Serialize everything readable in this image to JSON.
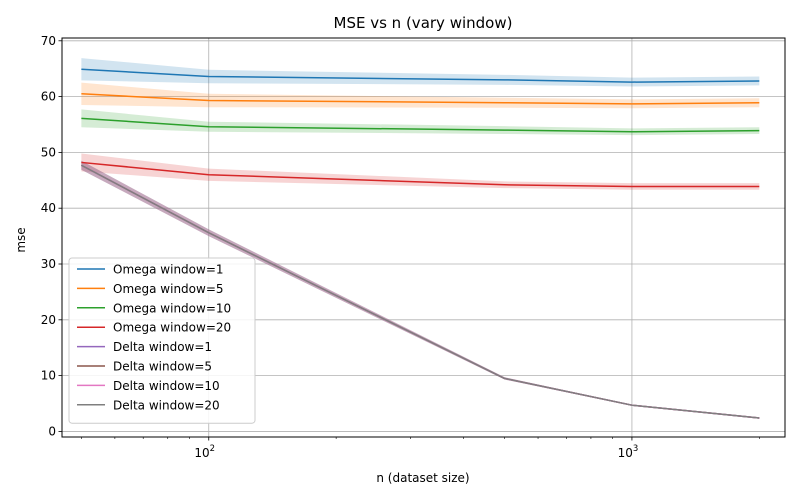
{
  "chart_data": {
    "type": "line",
    "title": "MSE vs n (vary window)",
    "xlabel": "n (dataset size)",
    "ylabel": "mse",
    "xscale": "log",
    "xlim": [
      45,
      2300
    ],
    "ylim": [
      -1,
      70.5
    ],
    "grid": true,
    "legend_position": "lower-left",
    "x": [
      50,
      100,
      500,
      1000,
      2000
    ],
    "x_ticks": [
      {
        "value": 100,
        "base": "10",
        "exp": "2"
      },
      {
        "value": 1000,
        "base": "10",
        "exp": "3"
      }
    ],
    "y_ticks": [
      0,
      10,
      20,
      30,
      40,
      50,
      60,
      70
    ],
    "series": [
      {
        "name": "Omega window=1",
        "color": "#1f77b4",
        "values": [
          64.9,
          63.6,
          63.0,
          62.6,
          62.8
        ],
        "band": [
          2.0,
          1.2,
          0.9,
          0.8,
          0.8
        ]
      },
      {
        "name": "Omega window=5",
        "color": "#ff7f0e",
        "values": [
          60.5,
          59.3,
          58.9,
          58.7,
          58.9
        ],
        "band": [
          2.0,
          1.2,
          0.9,
          0.8,
          0.8
        ]
      },
      {
        "name": "Omega window=10",
        "color": "#2ca02c",
        "values": [
          56.1,
          54.6,
          54.0,
          53.7,
          53.9
        ],
        "band": [
          1.6,
          0.9,
          0.7,
          0.6,
          0.6
        ]
      },
      {
        "name": "Omega window=20",
        "color": "#d62728",
        "values": [
          48.2,
          46.0,
          44.2,
          43.9,
          43.9
        ],
        "band": [
          1.6,
          1.1,
          0.6,
          0.6,
          0.6
        ]
      },
      {
        "name": "Delta window=1",
        "color": "#9467bd",
        "values": [
          47.7,
          35.6,
          9.5,
          4.7,
          2.4
        ],
        "band": [
          0.8,
          0.6,
          0.2,
          0.1,
          0.1
        ]
      },
      {
        "name": "Delta window=5",
        "color": "#8c564b",
        "values": [
          47.7,
          35.6,
          9.5,
          4.7,
          2.4
        ],
        "band": [
          0.8,
          0.6,
          0.2,
          0.1,
          0.1
        ]
      },
      {
        "name": "Delta window=10",
        "color": "#e377c2",
        "values": [
          47.7,
          35.6,
          9.5,
          4.7,
          2.4
        ],
        "band": [
          0.8,
          0.6,
          0.2,
          0.1,
          0.1
        ]
      },
      {
        "name": "Delta window=20",
        "color": "#7f7f7f",
        "values": [
          47.7,
          35.6,
          9.5,
          4.7,
          2.4
        ],
        "band": [
          0.8,
          0.6,
          0.2,
          0.1,
          0.1
        ]
      }
    ]
  }
}
